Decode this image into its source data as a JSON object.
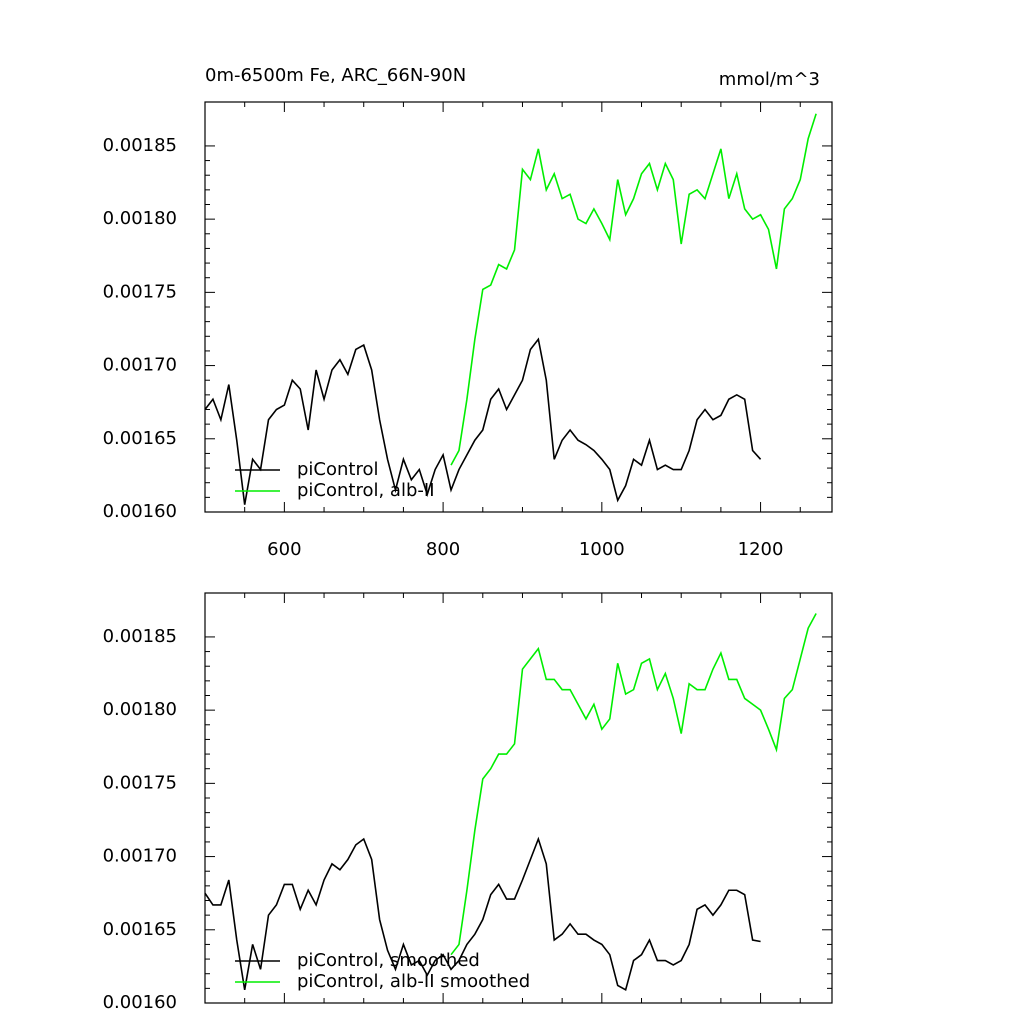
{
  "chart_data": [
    {
      "type": "line",
      "left_title": "0m-6500m Fe, ARC_66N-90N",
      "right_title": "mmol/m^3",
      "xlim": [
        500,
        1290
      ],
      "ylim": [
        0.0016,
        0.00188
      ],
      "xticks": [
        600,
        800,
        1000,
        1200
      ],
      "yticks": [
        {
          "value": 0.0016,
          "label": "0.00160"
        },
        {
          "value": 0.00165,
          "label": "0.00165"
        },
        {
          "value": 0.0017,
          "label": "0.00170"
        },
        {
          "value": 0.00175,
          "label": "0.00175"
        },
        {
          "value": 0.0018,
          "label": "0.00180"
        },
        {
          "value": 0.00185,
          "label": "0.00185"
        }
      ],
      "legend": "lower left",
      "series": [
        {
          "name": "piControl",
          "color": "#000000",
          "x": [
            500,
            510,
            520,
            530,
            540,
            550,
            560,
            570,
            580,
            590,
            600,
            610,
            620,
            630,
            640,
            650,
            660,
            670,
            680,
            690,
            700,
            710,
            720,
            730,
            740,
            750,
            760,
            770,
            780,
            790,
            800,
            810,
            820,
            830,
            840,
            850,
            860,
            870,
            880,
            890,
            900,
            910,
            920,
            930,
            940,
            950,
            960,
            970,
            980,
            990,
            1000,
            1010,
            1020,
            1030,
            1040,
            1050,
            1060,
            1070,
            1080,
            1090,
            1100,
            1110,
            1120,
            1130,
            1140,
            1150,
            1160,
            1170,
            1180,
            1190,
            1200
          ],
          "values": [
            0.00167,
            0.001677,
            0.001663,
            0.001687,
            0.001649,
            0.001605,
            0.001636,
            0.001629,
            0.001663,
            0.00167,
            0.001673,
            0.00169,
            0.001684,
            0.001656,
            0.001697,
            0.001677,
            0.001697,
            0.001704,
            0.001694,
            0.001711,
            0.001714,
            0.001697,
            0.001663,
            0.001636,
            0.001615,
            0.001636,
            0.001622,
            0.001629,
            0.001612,
            0.001629,
            0.001639,
            0.001615,
            0.001629,
            0.001639,
            0.001649,
            0.001656,
            0.001677,
            0.001684,
            0.00167,
            0.00168,
            0.00169,
            0.001711,
            0.001718,
            0.00169,
            0.001636,
            0.001649,
            0.001656,
            0.001649,
            0.001646,
            0.001642,
            0.001636,
            0.001629,
            0.001608,
            0.001618,
            0.001636,
            0.001632,
            0.001649,
            0.001629,
            0.001632,
            0.001629,
            0.001629,
            0.001642,
            0.001663,
            0.00167,
            0.001663,
            0.001666,
            0.001677,
            0.00168,
            0.001677,
            0.001642,
            0.001636
          ]
        },
        {
          "name": "piControl, alb-II",
          "color": "#00ee00",
          "x": [
            810,
            820,
            830,
            840,
            850,
            860,
            870,
            880,
            890,
            900,
            910,
            920,
            930,
            940,
            950,
            960,
            970,
            980,
            990,
            1000,
            1010,
            1020,
            1030,
            1040,
            1050,
            1060,
            1070,
            1080,
            1090,
            1100,
            1110,
            1120,
            1130,
            1140,
            1150,
            1160,
            1170,
            1180,
            1190,
            1200,
            1210,
            1220,
            1230,
            1240,
            1250,
            1260,
            1270
          ],
          "values": [
            0.001632,
            0.001642,
            0.001677,
            0.001718,
            0.001752,
            0.001755,
            0.001769,
            0.001766,
            0.001779,
            0.001834,
            0.001827,
            0.001848,
            0.00182,
            0.001831,
            0.001814,
            0.001817,
            0.0018,
            0.001797,
            0.001807,
            0.001797,
            0.001786,
            0.001827,
            0.001803,
            0.001814,
            0.001831,
            0.001838,
            0.00182,
            0.001838,
            0.001827,
            0.001783,
            0.001817,
            0.00182,
            0.001814,
            0.001831,
            0.001848,
            0.001814,
            0.001831,
            0.001807,
            0.0018,
            0.001803,
            0.001793,
            0.001766,
            0.001807,
            0.001814,
            0.001827,
            0.001855,
            0.001872
          ]
        }
      ]
    },
    {
      "type": "line",
      "xlim": [
        500,
        1290
      ],
      "ylim": [
        0.0016,
        0.00188
      ],
      "xticks": [
        600,
        800,
        1000,
        1200
      ],
      "yticks": [
        {
          "value": 0.0016,
          "label": "0.00160"
        },
        {
          "value": 0.00165,
          "label": "0.00165"
        },
        {
          "value": 0.0017,
          "label": "0.00170"
        },
        {
          "value": 0.00175,
          "label": "0.00175"
        },
        {
          "value": 0.0018,
          "label": "0.00180"
        },
        {
          "value": 0.00185,
          "label": "0.00185"
        }
      ],
      "legend": "lower left",
      "series": [
        {
          "name": "piControl, smoothed",
          "color": "#000000",
          "x": [
            500,
            510,
            520,
            530,
            540,
            550,
            560,
            570,
            580,
            590,
            600,
            610,
            620,
            630,
            640,
            650,
            660,
            670,
            680,
            690,
            700,
            710,
            720,
            730,
            740,
            750,
            760,
            770,
            780,
            790,
            800,
            810,
            820,
            830,
            840,
            850,
            860,
            870,
            880,
            890,
            900,
            910,
            920,
            930,
            940,
            950,
            960,
            970,
            980,
            990,
            1000,
            1010,
            1020,
            1030,
            1040,
            1050,
            1060,
            1070,
            1080,
            1090,
            1100,
            1110,
            1120,
            1130,
            1140,
            1150,
            1160,
            1170,
            1180,
            1190,
            1200
          ],
          "values": [
            0.001675,
            0.001667,
            0.001667,
            0.001684,
            0.001643,
            0.001609,
            0.00164,
            0.001623,
            0.00166,
            0.001667,
            0.001681,
            0.001681,
            0.001664,
            0.001677,
            0.001667,
            0.001684,
            0.001695,
            0.001691,
            0.001698,
            0.001708,
            0.001712,
            0.001698,
            0.001657,
            0.001636,
            0.001623,
            0.00164,
            0.001626,
            0.001629,
            0.001619,
            0.001629,
            0.001633,
            0.001623,
            0.001629,
            0.00164,
            0.001647,
            0.001657,
            0.001674,
            0.001681,
            0.001671,
            0.001671,
            0.001684,
            0.001698,
            0.001712,
            0.001695,
            0.001643,
            0.001647,
            0.001654,
            0.001647,
            0.001647,
            0.001643,
            0.00164,
            0.001633,
            0.001612,
            0.001609,
            0.001629,
            0.001633,
            0.001643,
            0.001629,
            0.001629,
            0.001626,
            0.001629,
            0.00164,
            0.001664,
            0.001667,
            0.00166,
            0.001667,
            0.001677,
            0.001677,
            0.001674,
            0.001643,
            0.001642
          ]
        },
        {
          "name": "piControl, alb-II smoothed",
          "color": "#00ee00",
          "x": [
            810,
            820,
            830,
            840,
            850,
            860,
            870,
            880,
            890,
            900,
            910,
            920,
            930,
            940,
            950,
            960,
            970,
            980,
            990,
            1000,
            1010,
            1020,
            1030,
            1040,
            1050,
            1060,
            1070,
            1080,
            1090,
            1100,
            1110,
            1120,
            1130,
            1140,
            1150,
            1160,
            1170,
            1180,
            1190,
            1200,
            1210,
            1220,
            1230,
            1240,
            1250,
            1260,
            1270
          ],
          "values": [
            0.001633,
            0.00164,
            0.001677,
            0.001718,
            0.001753,
            0.00176,
            0.00177,
            0.00177,
            0.001777,
            0.001828,
            0.001835,
            0.001842,
            0.001821,
            0.001821,
            0.001814,
            0.001814,
            0.001804,
            0.001794,
            0.001804,
            0.001787,
            0.001794,
            0.001832,
            0.001811,
            0.001814,
            0.001832,
            0.001835,
            0.001814,
            0.001825,
            0.001808,
            0.001784,
            0.001818,
            0.001814,
            0.001814,
            0.001828,
            0.001839,
            0.001821,
            0.001821,
            0.001808,
            0.001804,
            0.0018,
            0.001787,
            0.001773,
            0.001808,
            0.001814,
            0.001835,
            0.001856,
            0.001866
          ]
        }
      ]
    }
  ]
}
